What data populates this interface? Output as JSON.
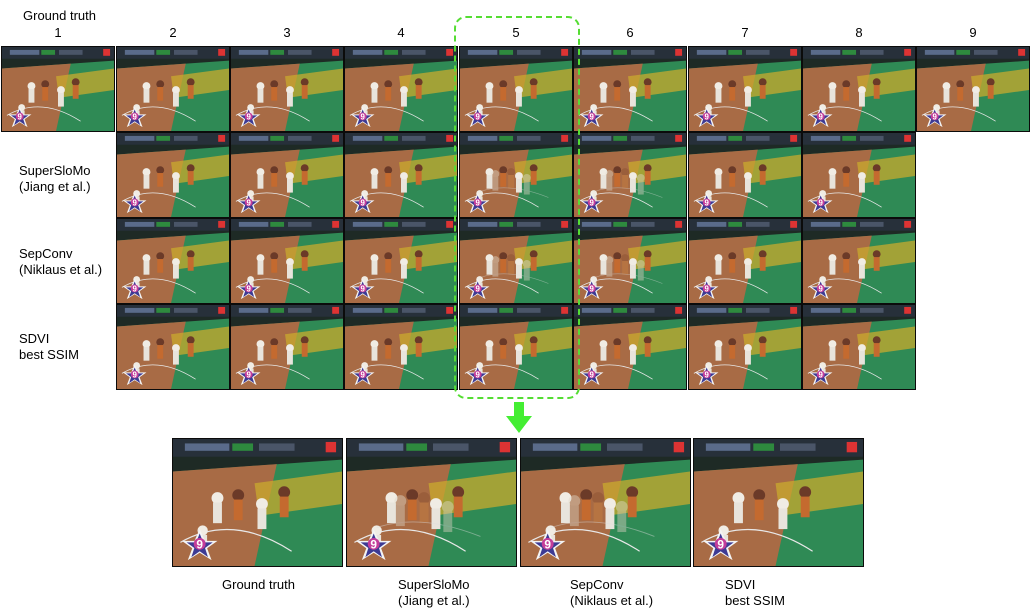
{
  "header": {
    "title": "Ground truth",
    "frame_numbers": [
      "1",
      "2",
      "3",
      "4",
      "5",
      "6",
      "7",
      "8",
      "9"
    ]
  },
  "rows": [
    {
      "line1": "SuperSloMo",
      "line2": "(Jiang et al.)"
    },
    {
      "line1": "SepConv",
      "line2": "(Niklaus et al.)"
    },
    {
      "line1": "SDVI",
      "line2": "best SSIM"
    }
  ],
  "zoom": {
    "captions": [
      {
        "line1": "Ground truth",
        "line2": ""
      },
      {
        "line1": "SuperSloMo",
        "line2": "(Jiang et al.)"
      },
      {
        "line1": "SepConv",
        "line2": "(Niklaus et al.)"
      },
      {
        "line1": "SDVI",
        "line2": "best SSIM"
      }
    ]
  },
  "overlay": {
    "highlight_color": "#55dd33",
    "arrow_color": "#44ee33",
    "star_label": "9"
  },
  "colors": {
    "crowd": "#1e2a25",
    "court_wood": "#a86b45",
    "paint_green": "#2f8a55",
    "lane_yellow": "#c9a92e"
  }
}
